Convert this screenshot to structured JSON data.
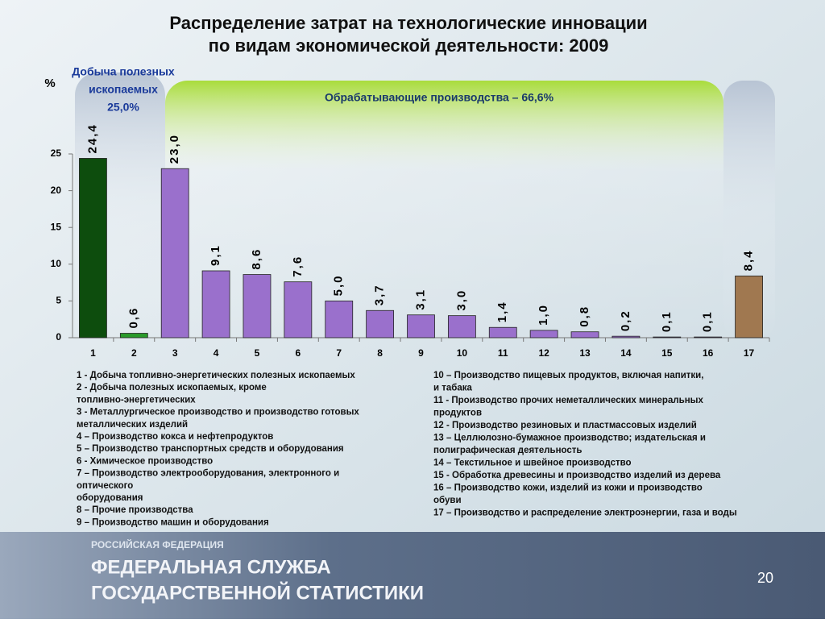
{
  "chart_data": {
    "type": "bar",
    "title": [
      "Распределение затрат на технологические инновации",
      "по видам экономической деятельности: 2009"
    ],
    "y_label": "%",
    "annotations": [
      "Добыча полезных",
      "ископаемых",
      "25,0%",
      "Обрабатывающие производства – 66,6%"
    ],
    "categories": [
      "1",
      "2",
      "3",
      "4",
      "5",
      "6",
      "7",
      "8",
      "9",
      "10",
      "11",
      "12",
      "13",
      "14",
      "15",
      "16",
      "17"
    ],
    "values": [
      24.4,
      0.6,
      23.0,
      9.1,
      8.6,
      7.6,
      5.0,
      3.7,
      3.1,
      3.0,
      1.4,
      1.0,
      0.8,
      0.2,
      0.1,
      0.1,
      8.4
    ],
    "value_labels": [
      "24,4",
      "0,6",
      "23,0",
      "9,1",
      "8,6",
      "7,6",
      "5,0",
      "3,7",
      "3,1",
      "3,0",
      "1,4",
      "1,0",
      "0,8",
      "0,2",
      "0,1",
      "0,1",
      "8,4"
    ],
    "colors": [
      "#0d4d0d",
      "#2a9a2a",
      "#9a70cc",
      "#9a70cc",
      "#9a70cc",
      "#9a70cc",
      "#9a70cc",
      "#9a70cc",
      "#9a70cc",
      "#9a70cc",
      "#9a70cc",
      "#9a70cc",
      "#9a70cc",
      "#9a70cc",
      "#9a70cc",
      "#9a70cc",
      "#a07850"
    ],
    "ylim": [
      0,
      25
    ],
    "yticks": [
      0,
      5,
      10,
      15,
      20,
      25
    ]
  },
  "notes": {
    "left": [
      "1 - Добыча топливно-энергетических полезных ископаемых",
      "2 - Добыча полезных ископаемых, кроме",
      "топливно-энергетических",
      "3  - Металлургическое производство и производство готовых",
      "металлических изделий",
      "4 – Производство кокса и нефтепродуктов",
      "5 – Производство транспортных средств и оборудования",
      "6 - Химическое производство",
      "7 – Производство электрооборудования, электронного и",
      "оптического",
      "оборудования",
      "8 – Прочие производства",
      "9 – Производство машин и оборудования"
    ],
    "right": [
      "10 – Производство пищевых продуктов, включая напитки,",
      "и табака",
      "11 - Производство прочих неметаллических минеральных",
      "продуктов",
      "12 - Производство резиновых и пластмассовых изделий",
      "13 – Целлюлозно-бумажное производство; издательская и",
      "полиграфическая деятельность",
      "14 – Текстильное и швейное производство",
      "15 - Обработка древесины и производство изделий из дерева",
      "16 – Производство кожи, изделий из кожи и производство",
      "обуви",
      "17 – Производство и распределение электроэнергии, газа и воды"
    ]
  },
  "footer": {
    "country": "РОССИЙСКАЯ ФЕДЕРАЦИЯ",
    "line1": "ФЕДЕРАЛЬНАЯ СЛУЖБА",
    "line2": "ГОСУДАРСТВЕННОЙ СТАТИСТИКИ",
    "page": "20"
  }
}
